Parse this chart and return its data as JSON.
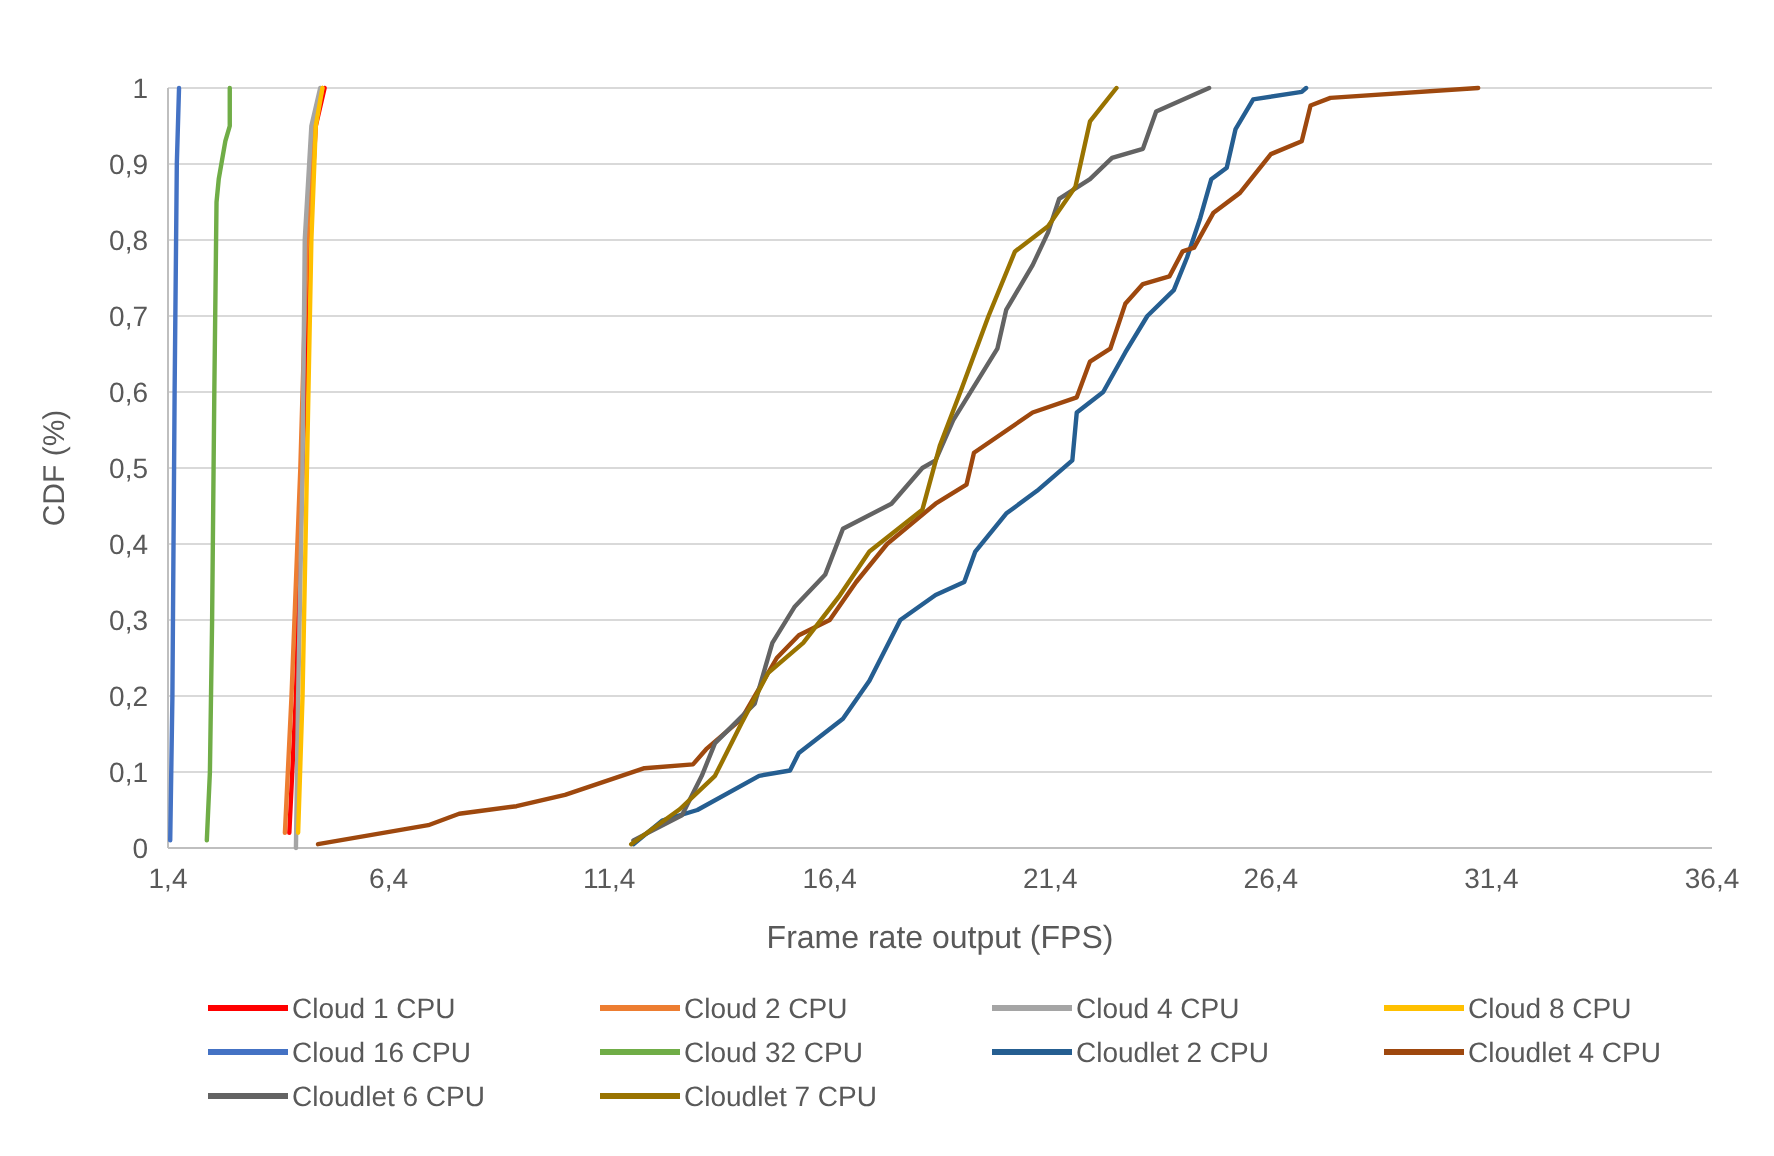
{
  "chart_data": {
    "type": "line",
    "xlabel": "Frame rate output (FPS)",
    "ylabel": "CDF (%)",
    "xlim": [
      1.4,
      36.4
    ],
    "ylim": [
      0,
      1
    ],
    "xticks": [
      {
        "value": 1.4,
        "label": "1,4"
      },
      {
        "value": 6.4,
        "label": "6,4"
      },
      {
        "value": 11.4,
        "label": "11,4"
      },
      {
        "value": 16.4,
        "label": "16,4"
      },
      {
        "value": 21.4,
        "label": "21,4"
      },
      {
        "value": 26.4,
        "label": "26,4"
      },
      {
        "value": 31.4,
        "label": "31,4"
      },
      {
        "value": 36.4,
        "label": "36,4"
      }
    ],
    "yticks": [
      0,
      {
        "value": 0.1,
        "label": "0,1"
      },
      {
        "value": 0.2,
        "label": "0,2"
      },
      {
        "value": 0.3,
        "label": "0,3"
      },
      {
        "value": 0.4,
        "label": "0,4"
      },
      {
        "value": 0.5,
        "label": "0,5"
      },
      {
        "value": 0.6,
        "label": "0,6"
      },
      {
        "value": 0.7,
        "label": "0,7"
      },
      {
        "value": 0.8,
        "label": "0,8"
      },
      {
        "value": 0.9,
        "label": "0,9"
      },
      1
    ],
    "grid": "y",
    "legend": "bottom",
    "marker": "none",
    "line_style": "solid",
    "series": [
      {
        "name": "Cloud 1 CPU",
        "color": "#ff0000",
        "x": [
          4.15,
          4.3,
          4.45,
          4.6,
          4.75,
          4.95
        ],
        "values": [
          0.02,
          0.2,
          0.5,
          0.8,
          0.95,
          1
        ]
      },
      {
        "name": "Cloud 2 CPU",
        "color": "#ed7d31",
        "x": [
          4.05,
          4.2,
          4.4,
          4.55,
          4.7,
          4.9
        ],
        "values": [
          0.02,
          0.2,
          0.5,
          0.8,
          0.95,
          1
        ]
      },
      {
        "name": "Cloud 4 CPU",
        "color": "#a5a5a5",
        "x": [
          4.3,
          4.35,
          4.45,
          4.5,
          4.65,
          4.85
        ],
        "values": [
          0,
          0.2,
          0.5,
          0.8,
          0.95,
          1
        ]
      },
      {
        "name": "Cloud 8 CPU",
        "color": "#ffc000",
        "x": [
          4.35,
          4.45,
          4.55,
          4.65,
          4.75,
          4.9
        ],
        "values": [
          0.02,
          0.2,
          0.5,
          0.8,
          0.95,
          1
        ]
      },
      {
        "name": "Cloud 16 CPU",
        "color": "#4472c4",
        "x": [
          1.45,
          1.5,
          1.55,
          1.6,
          1.65
        ],
        "values": [
          0.01,
          0.2,
          0.6,
          0.9,
          1
        ]
      },
      {
        "name": "Cloud 32 CPU",
        "color": "#70ad47",
        "x": [
          2.28,
          2.35,
          2.4,
          2.45,
          2.5,
          2.55,
          2.7,
          2.8,
          2.8
        ],
        "values": [
          0.01,
          0.1,
          0.3,
          0.6,
          0.85,
          0.88,
          0.93,
          0.95,
          1
        ]
      },
      {
        "name": "Cloudlet 2 CPU",
        "color": "#255e91",
        "x": [
          11.95,
          12.6,
          13.4,
          14.8,
          15.5,
          15.7,
          16.7,
          17.3,
          18.0,
          18.8,
          19.45,
          19.7,
          20.4,
          21.1,
          21.9,
          22.0,
          22.6,
          23.1,
          23.6,
          24.2,
          24.5,
          24.8,
          25.05,
          25.4,
          25.6,
          26.0,
          27.1,
          27.2
        ],
        "values": [
          0.005,
          0.036,
          0.05,
          0.095,
          0.102,
          0.125,
          0.17,
          0.22,
          0.3,
          0.333,
          0.35,
          0.39,
          0.44,
          0.47,
          0.51,
          0.573,
          0.6,
          0.652,
          0.7,
          0.734,
          0.777,
          0.829,
          0.88,
          0.895,
          0.946,
          0.985,
          0.995,
          1
        ]
      },
      {
        "name": "Cloudlet 4 CPU",
        "color": "#9e480e",
        "x": [
          4.8,
          7.3,
          8.0,
          9.3,
          10.4,
          12.2,
          13.3,
          13.6,
          14.4,
          15.2,
          15.7,
          16.4,
          17.0,
          17.7,
          18.8,
          19.5,
          19.67,
          21.0,
          22.0,
          22.3,
          22.76,
          23.1,
          23.5,
          24.1,
          24.4,
          24.66,
          25.1,
          25.7,
          26.4,
          27.1,
          27.3,
          27.75,
          31.1
        ],
        "values": [
          0.005,
          0.03,
          0.045,
          0.055,
          0.07,
          0.105,
          0.11,
          0.13,
          0.17,
          0.25,
          0.28,
          0.3,
          0.35,
          0.4,
          0.453,
          0.478,
          0.52,
          0.573,
          0.593,
          0.64,
          0.657,
          0.716,
          0.742,
          0.752,
          0.785,
          0.79,
          0.836,
          0.862,
          0.913,
          0.93,
          0.977,
          0.987,
          1
        ]
      },
      {
        "name": "Cloudlet 6 CPU",
        "color": "#636363",
        "x": [
          11.95,
          13.05,
          13.5,
          13.8,
          14.7,
          15.1,
          15.6,
          16.3,
          16.7,
          17.8,
          18.5,
          18.8,
          19.2,
          20.2,
          20.4,
          21.0,
          21.35,
          21.6,
          22.3,
          22.8,
          23.5,
          23.8,
          25.0
        ],
        "values": [
          0.01,
          0.043,
          0.095,
          0.138,
          0.19,
          0.27,
          0.317,
          0.36,
          0.42,
          0.453,
          0.5,
          0.51,
          0.563,
          0.657,
          0.708,
          0.767,
          0.81,
          0.854,
          0.88,
          0.908,
          0.92,
          0.969,
          1
        ]
      },
      {
        "name": "Cloudlet 7 CPU",
        "color": "#997300",
        "x": [
          11.9,
          13.0,
          13.8,
          14.4,
          15.0,
          15.8,
          16.6,
          17.3,
          18.5,
          18.9,
          19.4,
          20.0,
          20.6,
          21.35,
          21.97,
          22.3,
          22.9
        ],
        "values": [
          0.005,
          0.051,
          0.095,
          0.164,
          0.23,
          0.27,
          0.33,
          0.39,
          0.445,
          0.53,
          0.606,
          0.7,
          0.785,
          0.818,
          0.87,
          0.956,
          1
        ]
      }
    ]
  }
}
